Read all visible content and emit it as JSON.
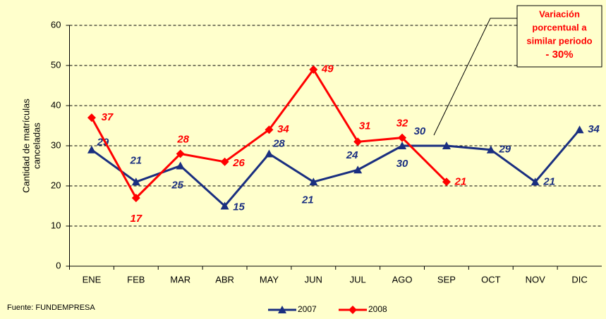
{
  "chart_data": {
    "type": "line",
    "y_label": [
      "Cantidad de matrículas",
      "canceladas"
    ],
    "categories": [
      "ENE",
      "FEB",
      "MAR",
      "ABR",
      "MAY",
      "JUN",
      "JUL",
      "AGO",
      "SEP",
      "OCT",
      "NOV",
      "DIC"
    ],
    "series": [
      {
        "name": "2007",
        "color": "#1a2f80",
        "marker": "triangle",
        "values": [
          29,
          21,
          25,
          15,
          28,
          21,
          24,
          30,
          30,
          29,
          21,
          34
        ]
      },
      {
        "name": "2008",
        "color": "#ff0000",
        "marker": "diamond",
        "values": [
          37,
          17,
          28,
          26,
          34,
          49,
          31,
          32,
          21,
          null,
          null,
          null
        ]
      }
    ],
    "ylim": [
      0,
      60
    ],
    "yticks": [
      0,
      10,
      20,
      30,
      40,
      50,
      60
    ],
    "grid": true,
    "annotation": [
      "Variación",
      "porcentual a",
      "similar periodo",
      "- 30%"
    ],
    "source": "Fuente: FUNDEMPRESA"
  }
}
